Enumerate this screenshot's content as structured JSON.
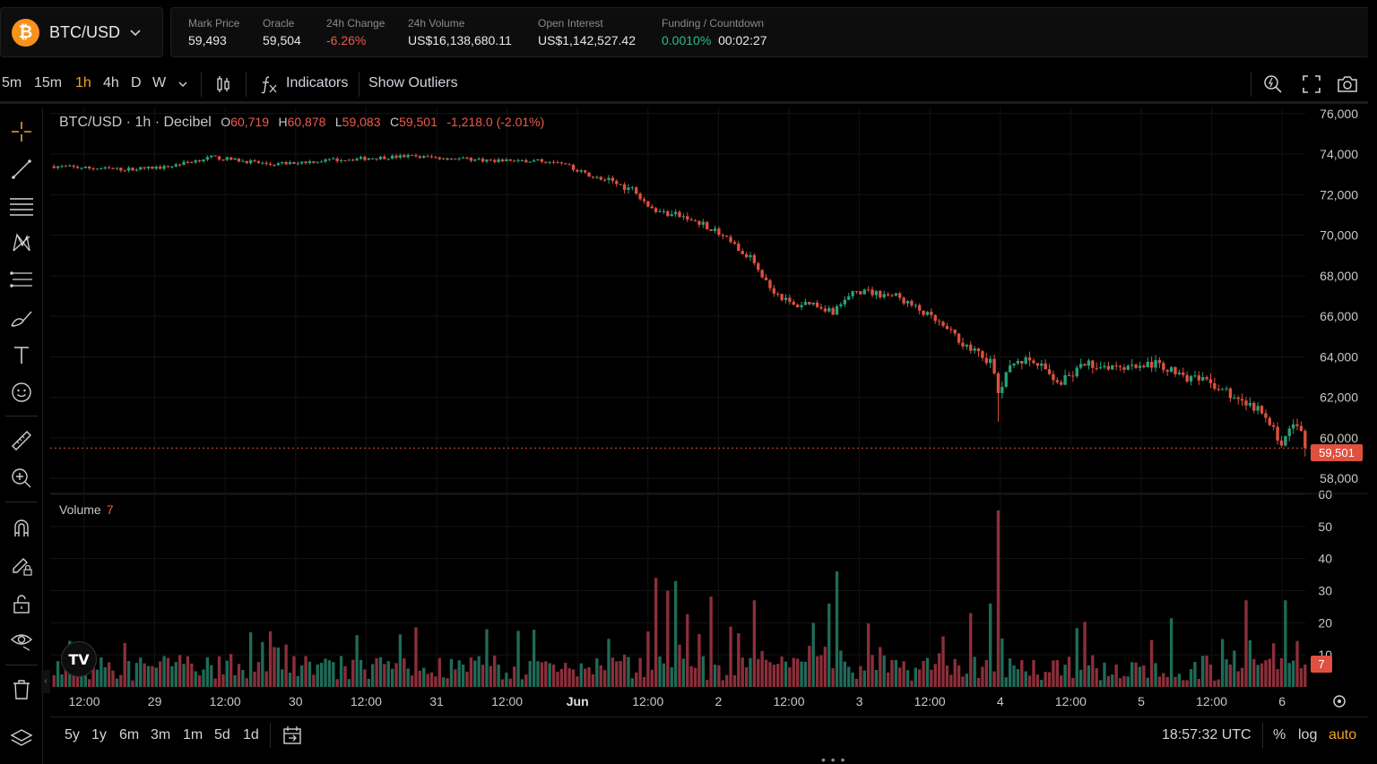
{
  "header": {
    "pair": "BTC/USD",
    "logo_glyph": "₿",
    "stats": [
      {
        "label": "Mark Price",
        "value": "59,493"
      },
      {
        "label": "Oracle",
        "value": "59,504"
      },
      {
        "label": "24h Change",
        "value": "-6.26%"
      },
      {
        "label": "24h Volume",
        "value": "US$16,138,680.11"
      },
      {
        "label": "Open Interest",
        "value": "US$1,142,527.42"
      },
      {
        "label": "Funding / Countdown",
        "value": "0.0010%",
        "value2": "00:02:27"
      }
    ]
  },
  "toolbar": {
    "intervals": [
      "5m",
      "15m",
      "1h",
      "4h",
      "D",
      "W"
    ],
    "active_interval": "1h",
    "indicators_label": "Indicators",
    "outliers_label": "Show Outliers"
  },
  "legend": {
    "title": "BTC/USD · 1h · Decibel",
    "o_key": "O",
    "o": "60,719",
    "h_key": "H",
    "h": "60,878",
    "l_key": "L",
    "l": "59,083",
    "c_key": "C",
    "c": "59,501",
    "change": "-1,218.0 (-2.01%)"
  },
  "volume_legend": {
    "label": "Volume",
    "value": "7"
  },
  "price_tag": "59,501",
  "volume_tag": "7",
  "tv_logo": "TV",
  "chart_data": {
    "type": "candlestick",
    "price_axis_ticks": [
      58000,
      60000,
      62000,
      64000,
      66000,
      68000,
      70000,
      72000,
      74000,
      76000
    ],
    "price_axis_labels": [
      "58,000",
      "60,000",
      "62,000",
      "64,000",
      "66,000",
      "68,000",
      "70,000",
      "72,000",
      "74,000",
      "76,000"
    ],
    "price_ylim": [
      57300,
      76300
    ],
    "volume_axis_ticks": [
      10,
      20,
      30,
      40,
      50,
      60
    ],
    "volume_axis_labels": [
      "10",
      "20",
      "30",
      "40",
      "50",
      "60"
    ],
    "volume_ylim": [
      0,
      60
    ],
    "time_labels": [
      "12:00",
      "29",
      "12:00",
      "30",
      "12:00",
      "31",
      "12:00",
      "Jun",
      "12:00",
      "2",
      "12:00",
      "3",
      "12:00",
      "4",
      "12:00",
      "5",
      "12:00",
      "6"
    ],
    "last_price": 59501,
    "anchors": [
      [
        0,
        73400
      ],
      [
        10,
        73300
      ],
      [
        18,
        73250
      ],
      [
        28,
        73350
      ],
      [
        40,
        73850
      ],
      [
        55,
        73500
      ],
      [
        70,
        73700
      ],
      [
        90,
        73900
      ],
      [
        110,
        73700
      ],
      [
        128,
        73650
      ],
      [
        136,
        72950
      ],
      [
        142,
        72600
      ],
      [
        148,
        72200
      ],
      [
        152,
        71200
      ],
      [
        158,
        71000
      ],
      [
        165,
        70600
      ],
      [
        172,
        69600
      ],
      [
        178,
        68700
      ],
      [
        182,
        67400
      ],
      [
        188,
        66500
      ],
      [
        192,
        66700
      ],
      [
        198,
        66250
      ],
      [
        204,
        67250
      ],
      [
        214,
        67000
      ],
      [
        222,
        66050
      ],
      [
        228,
        65200
      ],
      [
        234,
        64200
      ],
      [
        238,
        63800
      ],
      [
        240,
        62200
      ],
      [
        244,
        63900
      ],
      [
        250,
        63600
      ],
      [
        256,
        62700
      ],
      [
        262,
        63600
      ],
      [
        272,
        63600
      ],
      [
        280,
        63600
      ],
      [
        288,
        63000
      ],
      [
        296,
        62500
      ],
      [
        306,
        61400
      ],
      [
        312,
        59800
      ],
      [
        316,
        60800
      ],
      [
        318,
        59500
      ]
    ],
    "candles_count": 319,
    "volume_profile": "random-like, with spikes near Jun 1 (~34), Jun 2 (~36), Jun 4 (~55)"
  },
  "bottom_bar": {
    "ranges": [
      "5y",
      "1y",
      "6m",
      "3m",
      "1m",
      "5d",
      "1d"
    ],
    "time": "18:57:32 UTC",
    "percent": "%",
    "log": "log",
    "auto": "auto"
  },
  "colors": {
    "up": "#26a17a",
    "down": "#e0503f",
    "accent": "#f0a030",
    "bg": "#000000",
    "btc": "#f7931a"
  }
}
